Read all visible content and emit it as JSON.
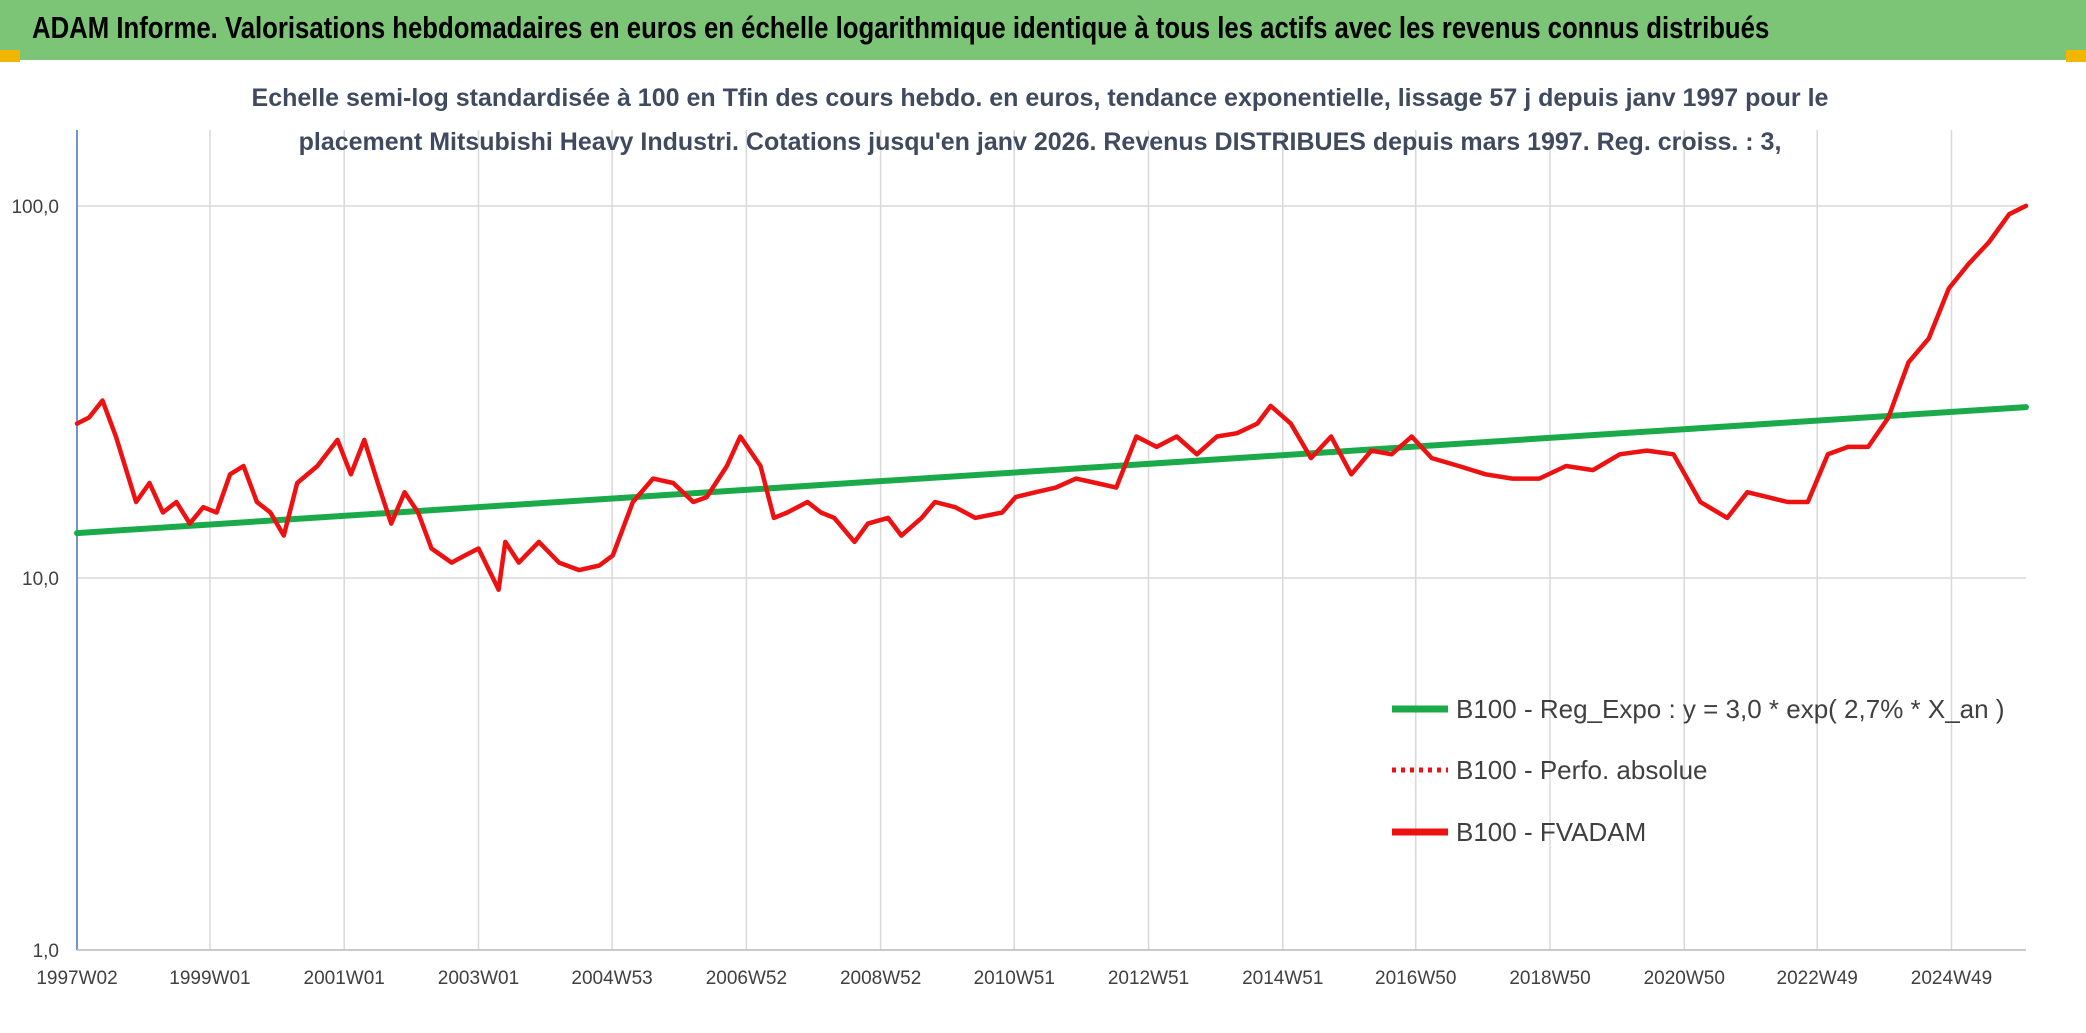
{
  "header": {
    "title": "ADAM Informe. Valorisations hebdomadaires en euros en échelle logarithmique identique à tous les actifs avec les revenus connus distribués"
  },
  "colors": {
    "header_bg": "#7cc576",
    "regression": "#1aaa4a",
    "fvadam": "#ee1111",
    "perfo": "#ee1111",
    "grid": "#d9d9d9",
    "accent_corner": "#f2b600"
  },
  "chart_data": {
    "type": "line",
    "subtitle_line1": "Echelle semi-log standardisée à 100 en Tfin des cours hebdo. en euros, tendance exponentielle, lissage 57 j depuis janv 1997 pour le",
    "subtitle_line2": "placement Mitsubishi Heavy Industri. Cotations jusqu'en janv 2026. Revenus DISTRIBUES depuis mars 1997. Reg. croiss. : 3,",
    "y_scale": "log",
    "ylim": [
      1,
      160
    ],
    "y_ticks": [
      {
        "value": 1,
        "label": "1,0"
      },
      {
        "value": 10,
        "label": "10,0"
      },
      {
        "value": 100,
        "label": "100,0"
      }
    ],
    "x_range": [
      1997.02,
      2026.05
    ],
    "x_ticks": [
      {
        "value": 1997.02,
        "label": "1997W02"
      },
      {
        "value": 1999.0,
        "label": "1999W01"
      },
      {
        "value": 2001.0,
        "label": "2001W01"
      },
      {
        "value": 2003.0,
        "label": "2003W01"
      },
      {
        "value": 2004.99,
        "label": "2004W53"
      },
      {
        "value": 2006.99,
        "label": "2006W52"
      },
      {
        "value": 2008.99,
        "label": "2008W52"
      },
      {
        "value": 2010.98,
        "label": "2010W51"
      },
      {
        "value": 2012.98,
        "label": "2012W51"
      },
      {
        "value": 2014.98,
        "label": "2014W51"
      },
      {
        "value": 2016.96,
        "label": "2016W50"
      },
      {
        "value": 2018.96,
        "label": "2018W50"
      },
      {
        "value": 2020.96,
        "label": "2020W50"
      },
      {
        "value": 2022.94,
        "label": "2022W49"
      },
      {
        "value": 2024.94,
        "label": "2024W49"
      }
    ],
    "legend_position": "right",
    "legend": [
      {
        "name": "B100 - Reg_Expo : y = 3,0 * exp( 2,7% *  X_an )",
        "style": "solid-green"
      },
      {
        "name": "B100 - Perfo. absolue",
        "style": "dotted-red"
      },
      {
        "name": "B100 - FVADAM",
        "style": "solid-red"
      }
    ],
    "series": [
      {
        "name": "B100 - Reg_Expo",
        "x": [
          1997.02,
          2026.05
        ],
        "values": [
          13.2,
          28.8
        ]
      },
      {
        "name": "B100 - FVADAM",
        "x": [
          1997.02,
          1997.2,
          1997.4,
          1997.6,
          1997.9,
          1998.1,
          1998.3,
          1998.5,
          1998.7,
          1998.9,
          1999.1,
          1999.3,
          1999.5,
          1999.7,
          1999.9,
          2000.1,
          2000.3,
          2000.6,
          2000.9,
          2001.1,
          2001.3,
          2001.5,
          2001.7,
          2001.9,
          2002.1,
          2002.3,
          2002.6,
          2002.8,
          2003.0,
          2003.3,
          2003.4,
          2003.6,
          2003.9,
          2004.2,
          2004.5,
          2004.8,
          2005.0,
          2005.3,
          2005.6,
          2005.9,
          2006.2,
          2006.4,
          2006.7,
          2006.9,
          2007.2,
          2007.4,
          2007.6,
          2007.9,
          2008.1,
          2008.3,
          2008.6,
          2008.8,
          2009.1,
          2009.3,
          2009.6,
          2009.8,
          2010.1,
          2010.4,
          2010.8,
          2011.0,
          2011.3,
          2011.6,
          2011.9,
          2012.2,
          2012.5,
          2012.8,
          2013.1,
          2013.4,
          2013.7,
          2014.0,
          2014.3,
          2014.6,
          2014.8,
          2015.1,
          2015.4,
          2015.7,
          2016.0,
          2016.3,
          2016.6,
          2016.9,
          2017.2,
          2017.6,
          2018.0,
          2018.4,
          2018.8,
          2019.2,
          2019.6,
          2020.0,
          2020.4,
          2020.8,
          2021.2,
          2021.6,
          2021.9,
          2022.2,
          2022.5,
          2022.8,
          2023.1,
          2023.4,
          2023.7,
          2024.0,
          2024.3,
          2024.6,
          2024.9,
          2025.2,
          2025.5,
          2025.8,
          2026.05
        ],
        "values": [
          26,
          27,
          30,
          24,
          16,
          18,
          15,
          16,
          14,
          15.5,
          15,
          19,
          20,
          16,
          15,
          13,
          18,
          20,
          23.5,
          19,
          23.5,
          18,
          14,
          17,
          15,
          12,
          11,
          11.5,
          12,
          9.3,
          12.5,
          11,
          12.5,
          11,
          10.5,
          10.8,
          11.5,
          16,
          18.5,
          18,
          16,
          16.5,
          20,
          24,
          20,
          14.5,
          15,
          16,
          15,
          14.5,
          12.5,
          14,
          14.5,
          13,
          14.5,
          16,
          15.5,
          14.5,
          15,
          16.5,
          17,
          17.5,
          18.5,
          18,
          17.5,
          24,
          22.5,
          24,
          21.5,
          24,
          24.5,
          26,
          29,
          26,
          21,
          24,
          19,
          22,
          21.5,
          24,
          21,
          20,
          19,
          18.5,
          18.5,
          20,
          19.5,
          21.5,
          22,
          21.5,
          16,
          14.5,
          17,
          16.5,
          16,
          16,
          21.5,
          22.5,
          22.5,
          27,
          38,
          44,
          60,
          70,
          80,
          95,
          100
        ]
      }
    ]
  }
}
